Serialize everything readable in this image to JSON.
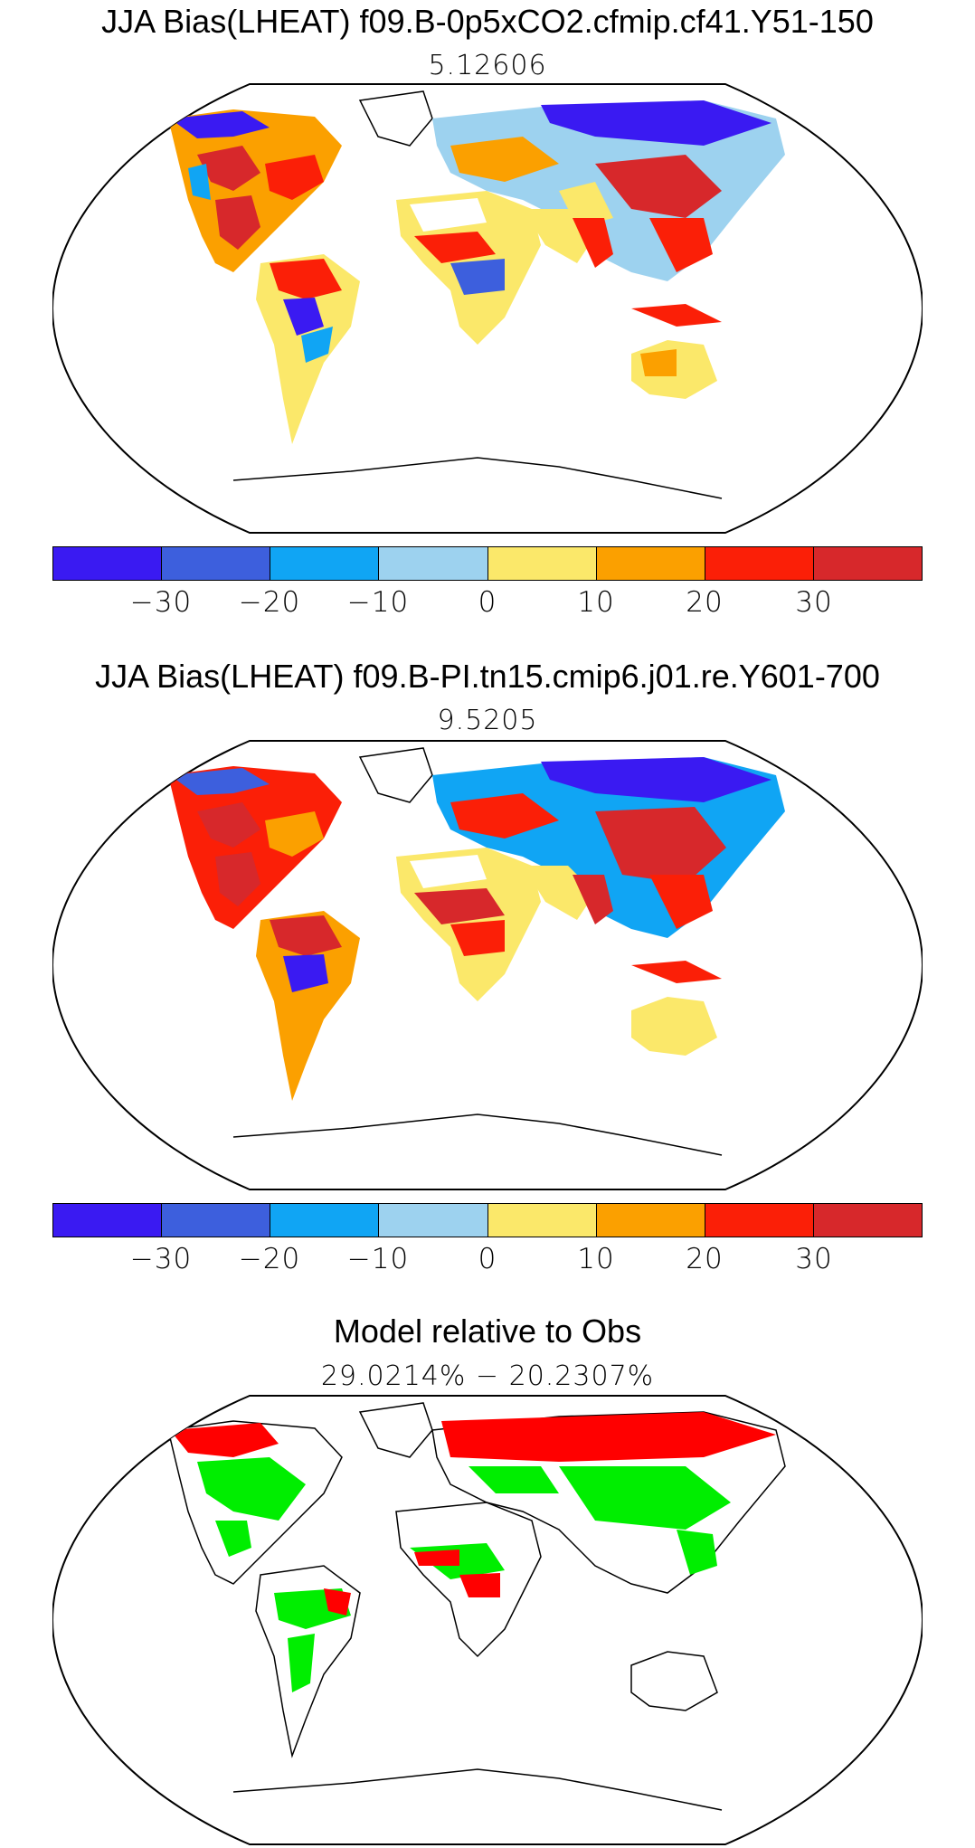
{
  "panel1": {
    "title": "JJA Bias(LHEAT) f09.B-0p5xCO2.cfmip.cf41.Y51-150",
    "value": "5.12606"
  },
  "panel2": {
    "title": "JJA Bias(LHEAT) f09.B-PI.tn15.cmip6.j01.re.Y601-700",
    "value": "9.5205"
  },
  "panel3": {
    "title": "Model relative to Obs",
    "value": "29.0214% − 20.2307%"
  },
  "colorbar": {
    "colors": [
      "#3a1af2",
      "#3d5fdd",
      "#10a5f4",
      "#9dd2ef",
      "#fbe86a",
      "#fba000",
      "#fb1f07",
      "#d7282b"
    ],
    "labels": [
      "−30",
      "−20",
      "−10",
      "0",
      "10",
      "20",
      "30"
    ]
  },
  "map_colors": {
    "better": "#00ee00",
    "worse": "#ff0000"
  }
}
